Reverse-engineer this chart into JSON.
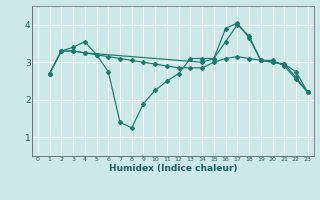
{
  "xlabel": "Humidex (Indice chaleur)",
  "bg_color": "#cce8e8",
  "line_color": "#1a7a6e",
  "grid_color": "#ffffff",
  "xlim": [
    -0.5,
    23.5
  ],
  "ylim": [
    0.5,
    4.5
  ],
  "yticks": [
    1,
    2,
    3,
    4
  ],
  "xticks": [
    0,
    1,
    2,
    3,
    4,
    5,
    6,
    7,
    8,
    9,
    10,
    11,
    12,
    13,
    14,
    15,
    16,
    17,
    18,
    19,
    20,
    21,
    22,
    23
  ],
  "lines": [
    {
      "x": [
        1,
        2,
        3,
        4,
        5,
        6,
        7,
        8,
        9,
        10,
        11,
        12,
        13,
        14,
        15,
        16,
        17,
        18,
        19,
        20,
        21,
        22,
        23
      ],
      "y": [
        2.7,
        3.3,
        3.4,
        3.55,
        3.2,
        2.75,
        1.4,
        1.25,
        1.9,
        2.25,
        2.5,
        2.7,
        3.1,
        3.1,
        3.1,
        3.55,
        4.0,
        3.7,
        3.05,
        3.05,
        2.9,
        2.55,
        2.2
      ]
    },
    {
      "x": [
        1,
        2,
        3,
        4,
        14,
        15,
        16,
        17,
        18,
        19,
        20,
        21,
        22,
        23
      ],
      "y": [
        2.7,
        3.3,
        3.3,
        3.25,
        3.0,
        3.1,
        3.9,
        4.05,
        3.65,
        3.05,
        3.0,
        2.95,
        2.75,
        2.2
      ]
    },
    {
      "x": [
        1,
        2,
        3,
        4,
        5,
        6,
        7,
        8,
        9,
        10,
        11,
        12,
        13,
        14,
        15,
        16,
        17,
        18,
        19,
        20,
        21,
        22,
        23
      ],
      "y": [
        2.7,
        3.3,
        3.3,
        3.25,
        3.2,
        3.15,
        3.1,
        3.05,
        3.0,
        2.95,
        2.9,
        2.85,
        2.85,
        2.85,
        3.0,
        3.1,
        3.15,
        3.1,
        3.05,
        3.0,
        2.95,
        2.6,
        2.2
      ]
    }
  ]
}
